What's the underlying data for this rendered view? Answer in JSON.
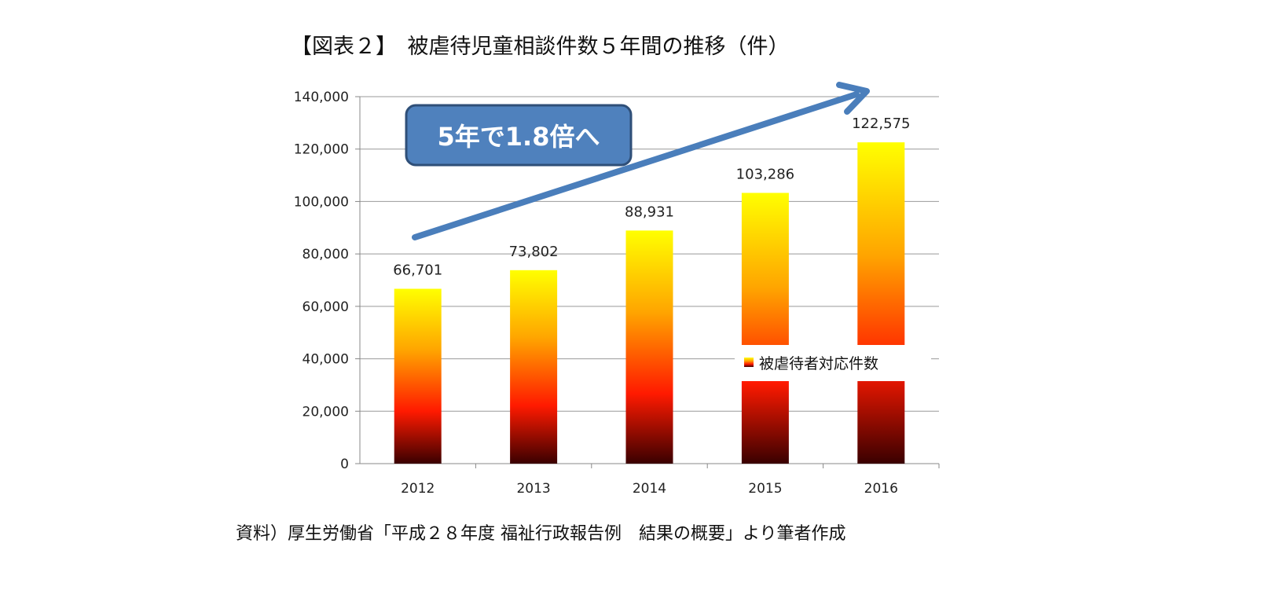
{
  "chart_data": {
    "type": "bar",
    "title": "【図表２】　被虐待児童相談件数５年間の推移（件）",
    "categories": [
      "2012",
      "2013",
      "2014",
      "2015",
      "2016"
    ],
    "series": [
      {
        "name": "被虐待者対応件数",
        "values": [
          66701,
          73802,
          88931,
          103286,
          122575
        ]
      }
    ],
    "data_labels": [
      "66,701",
      "73,802",
      "88,931",
      "103,286",
      "122,575"
    ],
    "y_ticks": [
      "0",
      "20,000",
      "40,000",
      "60,000",
      "80,000",
      "100,000",
      "120,000",
      "140,000"
    ],
    "ylim": [
      0,
      140000
    ],
    "grid": true,
    "legend_placement": "right",
    "annotation": "5年で1.8倍へ",
    "source": "資料）厚生労働省「平成２８年度 福祉行政報告例　結果の概要」より筆者作成",
    "colors": {
      "bar_top": "#ffff00",
      "bar_mid": "#ff1a00",
      "bar_bottom": "#3a0000",
      "callout": "#4f81bd",
      "arrow": "#4a7ebb"
    }
  }
}
